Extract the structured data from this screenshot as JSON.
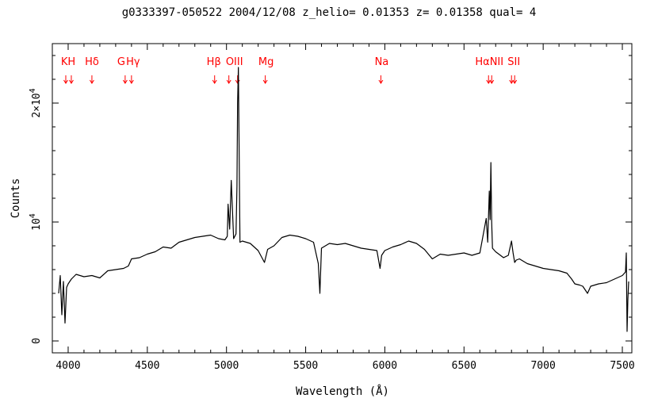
{
  "chart_data": {
    "type": "line",
    "title": "g0333397-050522 2004/12/08 z_helio= 0.01353 z= 0.01358 qual= 4",
    "xlabel": "Wavelength (Å)",
    "ylabel": "Counts",
    "xlim": [
      3900,
      7560
    ],
    "ylim": [
      -1000,
      25000
    ],
    "x_ticks": [
      4000,
      4500,
      5000,
      5500,
      6000,
      6500,
      7000,
      7500
    ],
    "y_ticks": [
      {
        "value": 0,
        "label": "0"
      },
      {
        "value": 10000,
        "label": "10",
        "exp": "4"
      },
      {
        "value": 20000,
        "label": "2×10",
        "exp": "4"
      }
    ],
    "series": [
      {
        "x": [
          3940,
          3950,
          3960,
          3970,
          3980,
          3990,
          4000,
          4020,
          4050,
          4100,
          4150,
          4200,
          4250,
          4300,
          4350,
          4380,
          4400,
          4450,
          4500,
          4550,
          4600,
          4650,
          4700,
          4750,
          4800,
          4850,
          4900,
          4950,
          4990,
          5005,
          5010,
          5020,
          5030,
          5045,
          5060,
          5066,
          5070,
          5075,
          5085,
          5100,
          5150,
          5200,
          5240,
          5260,
          5300,
          5350,
          5400,
          5450,
          5500,
          5550,
          5580,
          5590,
          5600,
          5650,
          5700,
          5750,
          5800,
          5850,
          5900,
          5950,
          5970,
          5980,
          6000,
          6050,
          6100,
          6150,
          6200,
          6250,
          6300,
          6350,
          6400,
          6450,
          6500,
          6550,
          6600,
          6640,
          6650,
          6660,
          6665,
          6670,
          6675,
          6680,
          6700,
          6750,
          6780,
          6800,
          6810,
          6820,
          6830,
          6850,
          6900,
          6950,
          7000,
          7050,
          7100,
          7150,
          7180,
          7200,
          7230,
          7250,
          7280,
          7300,
          7350,
          7400,
          7450,
          7500,
          7520,
          7525,
          7530,
          7535,
          7540
        ],
        "y": [
          4000,
          5500,
          2200,
          5000,
          1500,
          4500,
          4800,
          5200,
          5600,
          5400,
          5500,
          5300,
          5900,
          6000,
          6100,
          6300,
          6900,
          7000,
          7300,
          7500,
          7900,
          7800,
          8300,
          8500,
          8700,
          8800,
          8900,
          8600,
          8500,
          8800,
          11500,
          9400,
          13500,
          8600,
          9000,
          13000,
          20000,
          23000,
          8300,
          8400,
          8200,
          7600,
          6600,
          7700,
          8000,
          8700,
          8900,
          8800,
          8600,
          8300,
          6500,
          4000,
          7800,
          8200,
          8100,
          8200,
          8000,
          7800,
          7700,
          7600,
          6100,
          7200,
          7600,
          7900,
          8100,
          8400,
          8200,
          7700,
          6900,
          7300,
          7200,
          7300,
          7400,
          7200,
          7400,
          10300,
          8300,
          12600,
          10200,
          15000,
          10000,
          7800,
          7500,
          7000,
          7200,
          8400,
          7400,
          6600,
          6800,
          6900,
          6500,
          6300,
          6100,
          6000,
          5900,
          5700,
          5200,
          4800,
          4700,
          4600,
          4000,
          4600,
          4800,
          4900,
          5200,
          5500,
          5800,
          7400,
          800,
          3500,
          5000
        ]
      }
    ],
    "annotations": [
      {
        "label": "KH",
        "x": 4000,
        "arrows": [
          3985,
          4020
        ]
      },
      {
        "label": "Hδ",
        "x": 4150,
        "arrows": [
          4150
        ]
      },
      {
        "label": "G",
        "x": 4335,
        "arrows": [
          4360
        ]
      },
      {
        "label": "Hγ",
        "x": 4410,
        "arrows": [
          4400
        ]
      },
      {
        "label": "Hβ",
        "x": 4920,
        "arrows": [
          4925
        ]
      },
      {
        "label": "OIII",
        "x": 5050,
        "arrows": [
          5015,
          5070
        ]
      },
      {
        "label": "Mg",
        "x": 5250,
        "arrows": [
          5245
        ]
      },
      {
        "label": "Na",
        "x": 5980,
        "arrows": [
          5975
        ]
      },
      {
        "label": "HαNII",
        "x": 6660,
        "arrows": [
          6655,
          6675
        ]
      },
      {
        "label": "SII",
        "x": 6815,
        "arrows": [
          6800,
          6820
        ]
      }
    ],
    "grid": false,
    "legend": "none"
  }
}
